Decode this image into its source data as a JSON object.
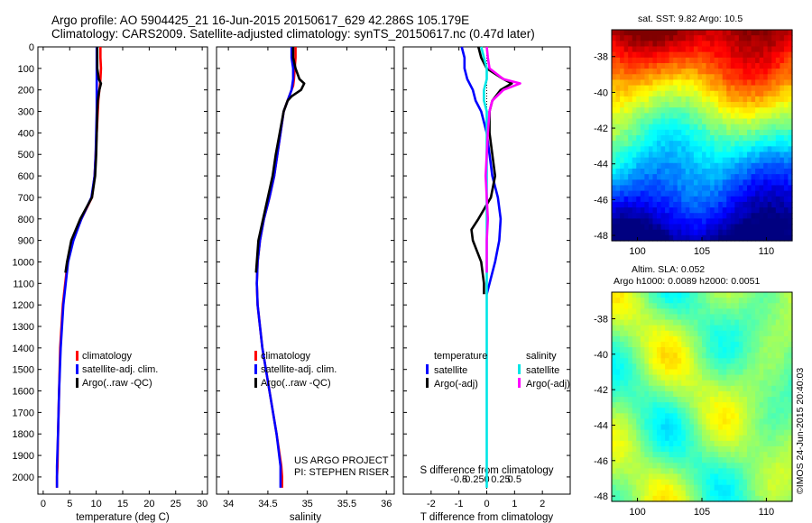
{
  "header": {
    "line1": "Argo profile: AO 5904425_21 16-Jun-2015 20150617_629 42.286S 105.179E",
    "line2": "Climatology: CARS2009. Satellite-adjusted climatology: synTS_20150617.nc (0.47d later)"
  },
  "colors": {
    "climatology": "#ff0000",
    "satellite": "#0000ff",
    "argo": "#000000",
    "satellite_salinity": "#00e6e6",
    "argo_salinity_adj": "#ff00ff"
  },
  "chart_data": [
    {
      "type": "line",
      "id": "temperature",
      "xlabel": "temperature (deg C)",
      "ylabel": "",
      "xlim": [
        -1,
        31
      ],
      "ylim": [
        2080,
        0
      ],
      "xticks": [
        "0",
        "5",
        "10",
        "15",
        "20",
        "25",
        "30"
      ],
      "xtick_values": [
        0,
        5,
        10,
        15,
        20,
        25,
        30
      ],
      "yticks": [
        "0",
        "100",
        "200",
        "300",
        "400",
        "500",
        "600",
        "700",
        "800",
        "900",
        "1000",
        "1100",
        "1200",
        "1300",
        "1400",
        "1500",
        "1600",
        "1700",
        "1800",
        "1900",
        "2000"
      ],
      "legend": [
        "climatology",
        "satellite-adj. clim.",
        "Argo(..raw -QC)"
      ],
      "series": [
        {
          "name": "climatology",
          "color_key": "climatology",
          "depth": [
            0,
            50,
            100,
            150,
            180,
            200,
            250,
            300,
            400,
            500,
            600,
            700,
            800,
            900,
            1000,
            1200,
            1400,
            1600,
            1800,
            1950,
            2000,
            2050
          ],
          "values": [
            10.8,
            10.8,
            10.9,
            10.8,
            10.7,
            10.6,
            10.4,
            10.3,
            10.1,
            9.9,
            9.7,
            9.2,
            7.2,
            5.6,
            4.6,
            3.7,
            3.2,
            3.0,
            2.8,
            2.7,
            2.6,
            2.6
          ]
        },
        {
          "name": "satellite-adj. clim.",
          "color_key": "satellite",
          "depth": [
            0,
            50,
            100,
            150,
            200,
            250,
            300,
            400,
            500,
            600,
            700,
            800,
            900,
            1000,
            1200,
            1400,
            1600,
            1800,
            1950,
            2000,
            2050
          ],
          "values": [
            10.1,
            10.1,
            10.1,
            10.1,
            10.1,
            10.1,
            10.1,
            10.0,
            9.9,
            9.7,
            9.1,
            7.2,
            5.7,
            4.7,
            3.8,
            3.3,
            3.0,
            2.8,
            2.6,
            2.6,
            2.6
          ]
        },
        {
          "name": "Argo(..raw -QC)",
          "color_key": "argo",
          "depth": [
            0,
            50,
            100,
            150,
            170,
            200,
            250,
            300,
            400,
            500,
            600,
            700,
            800,
            900,
            1000,
            1050
          ],
          "values": [
            10.2,
            10.2,
            10.2,
            10.5,
            10.9,
            10.6,
            10.3,
            10.2,
            10.1,
            10.0,
            9.8,
            9.2,
            7.0,
            5.3,
            4.5,
            4.2
          ]
        }
      ]
    },
    {
      "type": "line",
      "id": "salinity",
      "xlabel": "salinity",
      "ylabel": "",
      "xlim": [
        33.85,
        36.1
      ],
      "ylim": [
        2080,
        0
      ],
      "xticks": [
        "34",
        "34.5",
        "35",
        "35.5",
        "36"
      ],
      "xtick_values": [
        34,
        34.5,
        35,
        35.5,
        36
      ],
      "legend": [
        "climatology",
        "satellite-adj. clim.",
        "Argo(..raw -QC)"
      ],
      "annotation": [
        "US ARGO PROJECT",
        "PI: STEPHEN RISER"
      ],
      "series": [
        {
          "name": "climatology",
          "color_key": "climatology",
          "depth": [
            0,
            50,
            100,
            150,
            180,
            200,
            250,
            300,
            400,
            500,
            600,
            700,
            800,
            900,
            1000,
            1100,
            1200,
            1400,
            1600,
            1800,
            1950,
            2000,
            2050
          ],
          "values": [
            34.85,
            34.85,
            34.84,
            34.83,
            34.82,
            34.8,
            34.75,
            34.7,
            34.66,
            34.62,
            34.58,
            34.52,
            34.45,
            34.4,
            34.37,
            34.36,
            34.37,
            34.43,
            34.52,
            34.61,
            34.67,
            34.68,
            34.68
          ]
        },
        {
          "name": "satellite-adj. clim.",
          "color_key": "satellite",
          "depth": [
            0,
            50,
            100,
            150,
            200,
            250,
            300,
            400,
            500,
            600,
            700,
            800,
            900,
            1000,
            1100,
            1200,
            1400,
            1600,
            1800,
            1950,
            2000,
            2050
          ],
          "values": [
            34.8,
            34.8,
            34.82,
            34.82,
            34.8,
            34.75,
            34.7,
            34.66,
            34.62,
            34.58,
            34.52,
            34.45,
            34.4,
            34.37,
            34.36,
            34.37,
            34.43,
            34.52,
            34.61,
            34.66,
            34.66,
            34.66
          ]
        },
        {
          "name": "Argo(..raw -QC)",
          "color_key": "argo",
          "depth": [
            0,
            50,
            100,
            150,
            170,
            200,
            230,
            250,
            300,
            400,
            500,
            600,
            700,
            800,
            900,
            1000,
            1050
          ],
          "values": [
            34.82,
            34.82,
            34.85,
            34.9,
            34.96,
            34.92,
            34.8,
            34.75,
            34.7,
            34.65,
            34.6,
            34.56,
            34.5,
            34.44,
            34.38,
            34.36,
            34.35
          ]
        }
      ]
    },
    {
      "type": "line",
      "id": "difference",
      "xlabel": "T difference from climatology",
      "top_label": "S difference from climatology",
      "ylabel": "",
      "xlim": [
        -3,
        3
      ],
      "ylim": [
        2080,
        0
      ],
      "xticks": [
        "-2",
        "-1",
        "0",
        "1",
        "2"
      ],
      "xtick_values": [
        -2,
        -1,
        0,
        1,
        2
      ],
      "s_ticks": [
        "-0.5",
        "-0.25",
        "0",
        "0.25",
        "0.5"
      ],
      "s_tick_values": [
        -0.5,
        -0.25,
        0,
        0.25,
        0.5
      ],
      "legend_titles": [
        "temperature",
        "salinity"
      ],
      "legend": [
        "satellite",
        "Argo(-adj)",
        "satellite",
        "Argo(-adj)"
      ],
      "series": [
        {
          "name": "satellite",
          "group": "temperature",
          "color_key": "satellite",
          "depth": [
            0,
            50,
            100,
            150,
            200,
            250,
            300,
            400,
            500,
            600,
            700,
            800,
            900,
            1000,
            1100,
            1150
          ],
          "values": [
            -0.9,
            -0.8,
            -0.8,
            -0.7,
            -0.5,
            -0.4,
            -0.2,
            0.0,
            0.1,
            0.2,
            0.4,
            0.5,
            0.45,
            0.3,
            0.1,
            0.0
          ]
        },
        {
          "name": "Argo(-adj)",
          "group": "temperature",
          "color_key": "argo",
          "depth": [
            0,
            50,
            100,
            150,
            170,
            200,
            250,
            300,
            400,
            500,
            600,
            700,
            800,
            850,
            900,
            950,
            1000,
            1050,
            1100,
            1150
          ],
          "values": [
            -0.3,
            -0.2,
            0.0,
            0.6,
            0.9,
            0.5,
            0.2,
            0.1,
            0.1,
            0.2,
            0.3,
            0.15,
            -0.3,
            -0.55,
            -0.5,
            -0.35,
            -0.2,
            -0.15,
            -0.1,
            -0.1
          ]
        },
        {
          "name": "satellite",
          "group": "salinity",
          "color_key": "satellite_salinity",
          "depth": [
            0,
            50,
            100,
            150,
            200,
            250,
            300,
            400,
            600,
            800,
            1000,
            1200,
            1400,
            1600,
            1800,
            2000,
            2050
          ],
          "values": [
            -0.1,
            -0.05,
            0.0,
            0.0,
            -0.05,
            -0.05,
            0.0,
            0.0,
            0.0,
            0.0,
            0.0,
            0.0,
            0.0,
            0.0,
            0.0,
            0.0,
            0.0
          ]
        },
        {
          "name": "Argo(-adj)",
          "group": "salinity",
          "color_key": "argo_salinity_adj",
          "depth": [
            0,
            50,
            100,
            150,
            170,
            200,
            250,
            300,
            400,
            500,
            600,
            700,
            800,
            900,
            1000,
            1050
          ],
          "values": [
            0.0,
            0.02,
            0.05,
            0.3,
            0.6,
            0.3,
            0.1,
            0.05,
            0.02,
            0.0,
            -0.02,
            0.0,
            0.02,
            0.0,
            0.0,
            0.0
          ]
        }
      ]
    },
    {
      "type": "heatmap",
      "id": "sst_map",
      "title": "sat. SST: 9.82  Argo: 10.5",
      "xlim": [
        98,
        112
      ],
      "ylim": [
        -48.3,
        -36.5
      ],
      "xticks": [
        "100",
        "105",
        "110"
      ],
      "xtick_values": [
        100,
        105,
        110
      ],
      "yticks": [
        "-38",
        "-40",
        "-42",
        "-44",
        "-46",
        "-48"
      ],
      "ytick_values": [
        -38,
        -40,
        -42,
        -44,
        -46,
        -48
      ]
    },
    {
      "type": "heatmap",
      "id": "sla_map",
      "title_lines": [
        "Altim. SLA: 0.052",
        "Argo h1000: 0.0089 h2000: 0.0051"
      ],
      "xlim": [
        98,
        112
      ],
      "ylim": [
        -48.3,
        -36.5
      ],
      "xticks": [
        "100",
        "105",
        "110"
      ],
      "xtick_values": [
        100,
        105,
        110
      ],
      "yticks": [
        "-38",
        "-40",
        "-42",
        "-44",
        "-46",
        "-48"
      ],
      "ytick_values": [
        -38,
        -40,
        -42,
        -44,
        -46,
        -48
      ]
    }
  ],
  "depth_ticks": [
    "0",
    "100",
    "200",
    "300",
    "400",
    "500",
    "600",
    "700",
    "800",
    "900",
    "1000",
    "1100",
    "1200",
    "1300",
    "1400",
    "1500",
    "1600",
    "1700",
    "1800",
    "1900",
    "2000"
  ],
  "depth_tick_values": [
    0,
    100,
    200,
    300,
    400,
    500,
    600,
    700,
    800,
    900,
    1000,
    1100,
    1200,
    1300,
    1400,
    1500,
    1600,
    1700,
    1800,
    1900,
    2000
  ],
  "footer": {
    "imos_stamp": "©IMOS 24-Jun-2015 20:40:03"
  }
}
